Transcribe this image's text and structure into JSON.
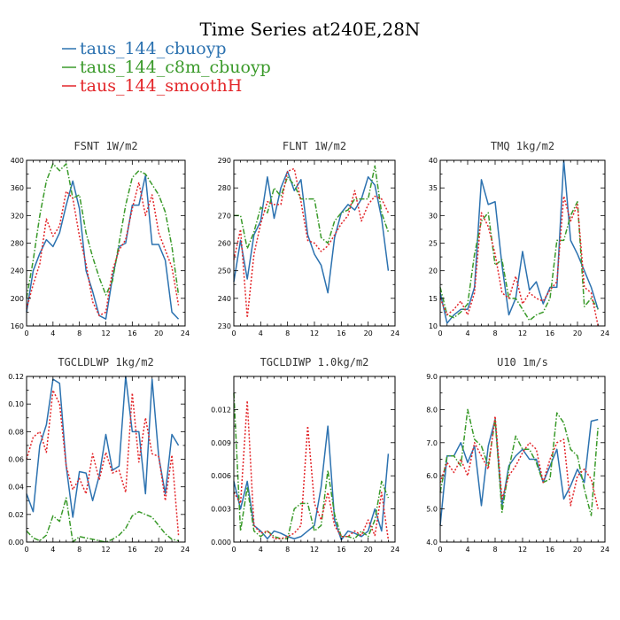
{
  "title": "Time Series at240E,28N",
  "legend": [
    {
      "label": "taus_144_cbuoyp",
      "color": "#2c72b0"
    },
    {
      "label": "taus_144_c8m_cbuoyp",
      "color": "#3a9a2a"
    },
    {
      "label": "taus_144_smoothH",
      "color": "#e3262a"
    }
  ],
  "chart_data": [
    {
      "type": "line",
      "title": "FSNT   1W/m2",
      "xlim": [
        0,
        24
      ],
      "ylim": [
        160,
        400
      ],
      "xticks": [
        0,
        4,
        8,
        12,
        16,
        20,
        24
      ],
      "yticks": [
        160,
        200,
        240,
        280,
        320,
        360,
        400
      ],
      "ytick_labels": [
        "160",
        "200",
        "240",
        "280",
        "320",
        "360",
        "400"
      ],
      "x": [
        0,
        1,
        2,
        3,
        4,
        5,
        6,
        7,
        8,
        9,
        10,
        11,
        12,
        13,
        14,
        15,
        16,
        17,
        18,
        19,
        20,
        21,
        22,
        23
      ],
      "series": [
        {
          "name": "taus_144_cbuoyp",
          "values": [
            180,
            240,
            265,
            285,
            275,
            295,
            335,
            370,
            330,
            240,
            210,
            175,
            170,
            230,
            275,
            280,
            335,
            335,
            378,
            278,
            278,
            255,
            180,
            170
          ]
        },
        {
          "name": "taus_144_c8m_cbuoyp",
          "values": [
            200,
            255,
            320,
            370,
            395,
            385,
            395,
            345,
            350,
            295,
            260,
            230,
            205,
            225,
            280,
            335,
            375,
            385,
            380,
            365,
            350,
            325,
            275,
            205
          ]
        },
        {
          "name": "taus_144_smoothH",
          "values": [
            185,
            220,
            250,
            315,
            290,
            305,
            355,
            345,
            290,
            250,
            195,
            175,
            180,
            240,
            270,
            285,
            330,
            368,
            320,
            350,
            295,
            270,
            245,
            190
          ]
        }
      ]
    },
    {
      "type": "line",
      "title": "FLNT   1W/m2",
      "xlim": [
        0,
        24
      ],
      "ylim": [
        230,
        290
      ],
      "xticks": [
        0,
        4,
        8,
        12,
        16,
        20,
        24
      ],
      "yticks": [
        230,
        240,
        250,
        260,
        270,
        280,
        290
      ],
      "ytick_labels": [
        "230",
        "240",
        "250",
        "260",
        "270",
        "280",
        "290"
      ],
      "x": [
        0,
        1,
        2,
        3,
        4,
        5,
        6,
        7,
        8,
        9,
        10,
        11,
        12,
        13,
        14,
        15,
        16,
        17,
        18,
        19,
        20,
        21,
        22,
        23
      ],
      "series": [
        {
          "name": "taus_144_cbuoyp",
          "values": [
            246,
            261,
            247,
            263,
            268,
            284,
            269,
            280,
            286,
            279,
            283,
            263,
            256,
            252,
            242,
            262,
            271,
            274,
            272,
            276,
            284,
            281,
            269,
            250
          ]
        },
        {
          "name": "taus_144_c8m_cbuoyp",
          "values": [
            270,
            270,
            258,
            264,
            273,
            271,
            280,
            277,
            284,
            281,
            276,
            276,
            276,
            262,
            260,
            268,
            271,
            272,
            276,
            276,
            276,
            288,
            271,
            264
          ]
        },
        {
          "name": "taus_144_smoothH",
          "values": [
            254,
            265,
            233,
            256,
            267,
            275,
            274,
            274,
            286,
            287,
            275,
            261,
            260,
            257,
            259,
            263,
            267,
            270,
            279,
            268,
            274,
            277,
            276,
            271
          ]
        }
      ]
    },
    {
      "type": "line",
      "title": "TMQ   1kg/m2",
      "xlim": [
        0,
        24
      ],
      "ylim": [
        10,
        40
      ],
      "xticks": [
        0,
        4,
        8,
        12,
        16,
        20,
        24
      ],
      "yticks": [
        10,
        15,
        20,
        25,
        30,
        35,
        40
      ],
      "ytick_labels": [
        "10",
        "15",
        "20",
        "25",
        "30",
        "35",
        "40"
      ],
      "x": [
        0,
        1,
        2,
        3,
        4,
        5,
        6,
        7,
        8,
        9,
        10,
        11,
        12,
        13,
        14,
        15,
        16,
        17,
        18,
        19,
        20,
        21,
        22,
        23
      ],
      "series": [
        {
          "name": "taus_144_cbuoyp",
          "values": [
            16,
            10.5,
            12,
            13,
            13,
            17,
            36.5,
            32,
            32.5,
            21,
            12,
            15,
            23.5,
            16.5,
            18,
            14,
            17,
            17,
            40,
            25.5,
            23,
            20,
            17,
            13
          ]
        },
        {
          "name": "taus_144_c8m_cbuoyp",
          "values": [
            17,
            12,
            11.5,
            12.5,
            14,
            23,
            29,
            30.5,
            21,
            22,
            15,
            15,
            13,
            11,
            12,
            12.5,
            15,
            25.5,
            25.5,
            30,
            32.5,
            13.5,
            15,
            13
          ]
        },
        {
          "name": "taus_144_smoothH",
          "values": [
            15,
            12,
            13,
            14.5,
            12,
            16,
            30.5,
            28,
            23,
            16,
            15,
            19,
            14,
            16,
            15,
            14.5,
            16.5,
            18,
            33.5,
            29,
            32,
            17,
            16,
            10
          ]
        }
      ]
    },
    {
      "type": "line",
      "title": "TGCLDLWP   1kg/m2",
      "xlim": [
        0,
        24
      ],
      "ylim": [
        0.0,
        0.12
      ],
      "xticks": [
        0,
        4,
        8,
        12,
        16,
        20,
        24
      ],
      "yticks": [
        0.0,
        0.02,
        0.04,
        0.06,
        0.08,
        0.1,
        0.12
      ],
      "ytick_labels": [
        "0.00",
        "0.02",
        "0.04",
        "0.06",
        "0.08",
        "0.10",
        "0.12"
      ],
      "x": [
        0,
        1,
        2,
        3,
        4,
        5,
        6,
        7,
        8,
        9,
        10,
        11,
        12,
        13,
        14,
        15,
        16,
        17,
        18,
        19,
        20,
        21,
        22,
        23
      ],
      "series": [
        {
          "name": "taus_144_cbuoyp",
          "values": [
            0.035,
            0.022,
            0.07,
            0.085,
            0.118,
            0.115,
            0.055,
            0.018,
            0.051,
            0.05,
            0.03,
            0.048,
            0.078,
            0.052,
            0.055,
            0.12,
            0.08,
            0.08,
            0.035,
            0.118,
            0.062,
            0.035,
            0.078,
            0.07
          ]
        },
        {
          "name": "taus_144_c8m_cbuoyp",
          "values": [
            0.008,
            0.003,
            0.001,
            0.005,
            0.019,
            0.015,
            0.032,
            0.0,
            0.004,
            0.003,
            0.002,
            0.001,
            0.0,
            0.002,
            0.005,
            0.01,
            0.019,
            0.022,
            0.02,
            0.018,
            0.012,
            0.006,
            0.002,
            0.001
          ]
        },
        {
          "name": "taus_144_smoothH",
          "values": [
            0.06,
            0.076,
            0.08,
            0.065,
            0.11,
            0.1,
            0.055,
            0.038,
            0.046,
            0.035,
            0.064,
            0.045,
            0.065,
            0.05,
            0.052,
            0.036,
            0.108,
            0.058,
            0.09,
            0.064,
            0.062,
            0.03,
            0.063,
            0.005
          ]
        }
      ]
    },
    {
      "type": "line",
      "title": "TGCLDIWP   1.0kg/m2",
      "xlim": [
        0,
        24
      ],
      "ylim": [
        0.0,
        0.015
      ],
      "xticks": [
        0,
        4,
        8,
        12,
        16,
        20,
        24
      ],
      "yticks": [
        0.0,
        0.003,
        0.006,
        0.009,
        0.012
      ],
      "ytick_labels": [
        "0.000",
        "0.003",
        "0.006",
        "0.009",
        "0.012"
      ],
      "x": [
        0,
        1,
        2,
        3,
        4,
        5,
        6,
        7,
        8,
        9,
        10,
        11,
        12,
        13,
        14,
        15,
        16,
        17,
        18,
        19,
        20,
        21,
        22,
        23
      ],
      "series": [
        {
          "name": "taus_144_cbuoyp",
          "values": [
            0.0055,
            0.003,
            0.0055,
            0.0015,
            0.001,
            0.0003,
            0.001,
            0.0008,
            0.0005,
            0.0003,
            0.0005,
            0.001,
            0.0015,
            0.005,
            0.0105,
            0.002,
            0.0002,
            0.001,
            0.0008,
            0.0005,
            0.001,
            0.003,
            0.001,
            0.008
          ]
        },
        {
          "name": "taus_144_c8m_cbuoyp",
          "values": [
            0.0135,
            0.001,
            0.005,
            0.001,
            0.0005,
            0.001,
            0.0005,
            0.0003,
            0.0003,
            0.003,
            0.0035,
            0.0035,
            0.001,
            0.0015,
            0.0065,
            0.0025,
            0.0005,
            0.0005,
            0.0003,
            0.001,
            0.0005,
            0.002,
            0.0055,
            0.004
          ]
        },
        {
          "name": "taus_144_smoothH",
          "values": [
            0.0045,
            0.0035,
            0.0128,
            0.0015,
            0.0008,
            0.001,
            0.0003,
            0.0003,
            0.0005,
            0.0008,
            0.0015,
            0.0105,
            0.0035,
            0.002,
            0.0045,
            0.0015,
            0.0005,
            0.0005,
            0.001,
            0.0006,
            0.002,
            0.0006,
            0.0045,
            0.0002
          ]
        }
      ]
    },
    {
      "type": "line",
      "title": "U10   1m/s",
      "xlim": [
        0,
        24
      ],
      "ylim": [
        4.0,
        9.0
      ],
      "xticks": [
        0,
        4,
        8,
        12,
        16,
        20,
        24
      ],
      "yticks": [
        4.0,
        5.0,
        6.0,
        7.0,
        8.0,
        9.0
      ],
      "ytick_labels": [
        "4.0",
        "5.0",
        "6.0",
        "7.0",
        "8.0",
        "9.0"
      ],
      "x": [
        0,
        1,
        2,
        3,
        4,
        5,
        6,
        7,
        8,
        9,
        10,
        11,
        12,
        13,
        14,
        15,
        16,
        17,
        18,
        19,
        20,
        21,
        22,
        23
      ],
      "series": [
        {
          "name": "taus_144_cbuoyp",
          "values": [
            4.5,
            6.6,
            6.6,
            7.0,
            6.4,
            6.9,
            5.1,
            6.9,
            7.7,
            5.1,
            6.3,
            6.6,
            6.8,
            6.5,
            6.5,
            5.8,
            6.3,
            6.8,
            5.3,
            5.7,
            6.2,
            5.8,
            7.65,
            7.7
          ]
        },
        {
          "name": "taus_144_c8m_cbuoyp",
          "values": [
            5.5,
            6.6,
            6.6,
            6.3,
            8.0,
            7.1,
            6.9,
            6.3,
            7.7,
            4.9,
            6.2,
            7.2,
            6.8,
            6.8,
            6.4,
            5.8,
            5.9,
            7.9,
            7.6,
            6.8,
            6.6,
            5.6,
            4.8,
            7.5
          ]
        },
        {
          "name": "taus_144_smoothH",
          "values": [
            5.8,
            6.4,
            6.1,
            6.5,
            6.0,
            7.0,
            6.6,
            6.2,
            7.8,
            5.3,
            6.0,
            6.3,
            6.7,
            7.0,
            6.8,
            5.8,
            6.5,
            7.0,
            7.1,
            5.1,
            6.0,
            6.2,
            5.9,
            5.0
          ]
        }
      ]
    }
  ]
}
